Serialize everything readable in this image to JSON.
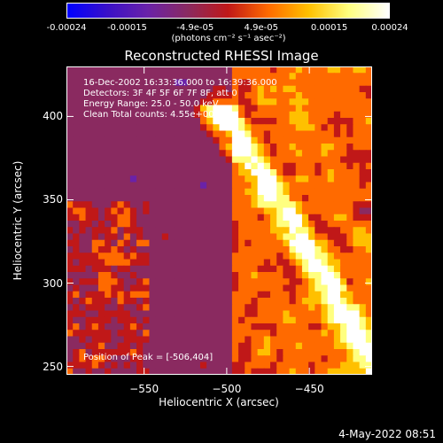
{
  "colorbar": {
    "ticks": [
      "-0.00024",
      "-0.00015",
      "-4.9e-05",
      "4.9e-05",
      "0.00015",
      "0.00024"
    ],
    "unit_label": "(photons cm⁻² s⁻¹ asec⁻²)",
    "min": -0.00024,
    "max": 0.00024,
    "colormap": [
      "#0000ff",
      "#3a10c8",
      "#6a22a8",
      "#8a2a60",
      "#c01818",
      "#ff6a00",
      "#ffc000",
      "#ffff80",
      "#ffffff"
    ]
  },
  "chart_data": {
    "type": "heatmap",
    "title": "Reconstructed RHESSI Image",
    "xlabel": "Heliocentric X (arcsec)",
    "ylabel": "Heliocentric Y (arcsec)",
    "xlim": [
      -597,
      -412
    ],
    "ylim": [
      245,
      430
    ],
    "x_ticks": [
      -550,
      -500,
      -450
    ],
    "x_tick_labels": [
      "−550",
      "−500",
      "−450"
    ],
    "y_ticks": [
      250,
      300,
      350,
      400
    ],
    "y_tick_labels": [
      "250",
      "300",
      "350",
      "400"
    ],
    "peak_position": [
      -506,
      404
    ],
    "annotations": {
      "time_range": "16-Dec-2002 16:33:36.000 to 16:39:36.000",
      "detectors": "Detectors: 3F 4F 5F 6F 7F 8F, att 0",
      "energy_range": "Energy Range: 25.0 - 50.0 keV",
      "method_counts": "Clean     Total counts: 4.55e+005",
      "peak_label": "Position of Peak = [-506,404]"
    }
  },
  "footer": {
    "timestamp": "4-May-2022 08:51"
  }
}
